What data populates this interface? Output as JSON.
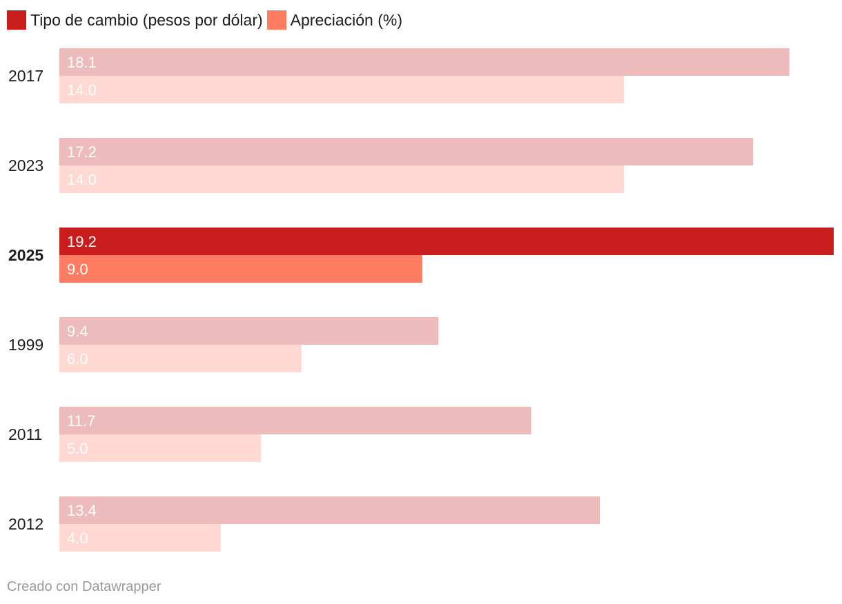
{
  "chart_data": {
    "type": "bar",
    "orientation": "horizontal",
    "categories": [
      "2017",
      "2023",
      "2025",
      "1999",
      "2011",
      "2012"
    ],
    "highlighted_category": "2025",
    "series": [
      {
        "name": "Tipo de cambio (pesos por dólar)",
        "values": [
          18.1,
          17.2,
          19.2,
          9.4,
          11.7,
          13.4
        ],
        "color": "#c91d1d",
        "muted_color": "#edbbbb"
      },
      {
        "name": "Apreciación (%)",
        "values": [
          14.0,
          14.0,
          9.0,
          6.0,
          5.0,
          4.0
        ],
        "color": "#ff7b61",
        "muted_color": "#ffd8d1"
      }
    ],
    "xlim": [
      0,
      19.2
    ],
    "grid": false,
    "legend_position": "top-left"
  },
  "footer": {
    "credit": "Creado con Datawrapper"
  }
}
